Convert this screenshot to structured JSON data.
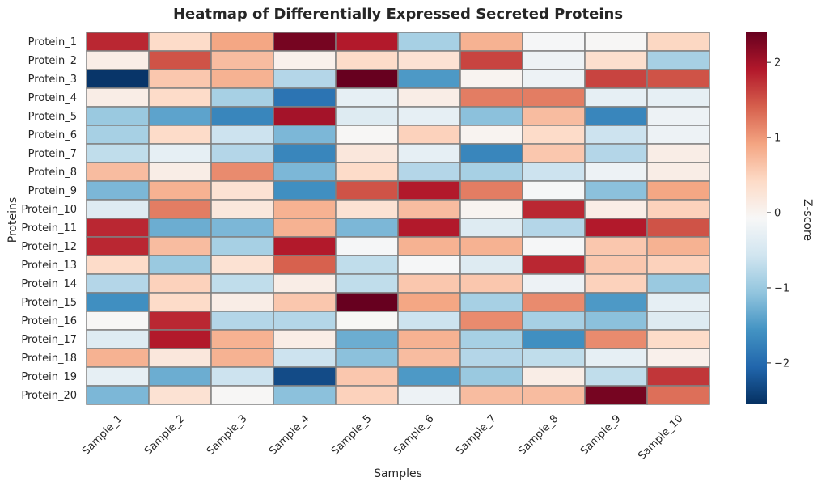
{
  "chart_data": {
    "type": "heatmap",
    "title": "Heatmap of Differentially Expressed Secreted Proteins",
    "xlabel": "Samples",
    "ylabel": "Proteins",
    "colorbar_label": "Z-score",
    "colormap": "RdBu_r",
    "vmin": -2.55,
    "vmax": 2.4,
    "colorbar_ticks": [
      -2,
      -1,
      0,
      1,
      2
    ],
    "colorbar_tick_labels": [
      "−2",
      "−1",
      "0",
      "1",
      "2"
    ],
    "columns": [
      "Sample_1",
      "Sample_2",
      "Sample_3",
      "Sample_4",
      "Sample_5",
      "Sample_6",
      "Sample_7",
      "Sample_8",
      "Sample_9",
      "Sample_10"
    ],
    "rows": [
      "Protein_1",
      "Protein_2",
      "Protein_3",
      "Protein_4",
      "Protein_5",
      "Protein_6",
      "Protein_7",
      "Protein_8",
      "Protein_9",
      "Protein_10",
      "Protein_11",
      "Protein_12",
      "Protein_13",
      "Protein_14",
      "Protein_15",
      "Protein_16",
      "Protein_17",
      "Protein_18",
      "Protein_19",
      "Protein_20"
    ],
    "values": [
      [
        1.8,
        0.4,
        0.9,
        2.3,
        1.9,
        -0.9,
        0.8,
        -0.1,
        -0.05,
        0.45
      ],
      [
        0.1,
        1.5,
        0.7,
        0.05,
        0.4,
        0.3,
        1.6,
        -0.2,
        0.35,
        -0.9
      ],
      [
        -2.5,
        0.6,
        0.8,
        -0.8,
        2.4,
        -1.5,
        0.0,
        -0.2,
        1.6,
        1.5
      ],
      [
        0.1,
        0.4,
        -0.9,
        -1.9,
        -0.3,
        0.1,
        1.2,
        1.2,
        -0.3,
        -0.3
      ],
      [
        -1.0,
        -1.4,
        -1.7,
        2.0,
        -0.4,
        -0.3,
        -1.1,
        0.7,
        -1.7,
        -0.2
      ],
      [
        -0.9,
        0.4,
        -0.6,
        -1.2,
        -0.05,
        0.5,
        0.0,
        0.4,
        -0.6,
        -0.2
      ],
      [
        -0.7,
        -0.3,
        -0.8,
        -1.7,
        0.2,
        -0.3,
        -1.7,
        0.6,
        -0.8,
        0.1
      ],
      [
        0.7,
        0.1,
        1.1,
        -1.2,
        0.4,
        -0.8,
        -0.9,
        -0.6,
        -0.2,
        0.1
      ],
      [
        -1.2,
        0.8,
        0.3,
        -1.6,
        1.5,
        1.9,
        1.2,
        -0.1,
        -1.1,
        0.9
      ],
      [
        -0.4,
        1.2,
        0.2,
        0.8,
        0.3,
        0.7,
        0.0,
        1.8,
        0.1,
        0.5
      ],
      [
        1.8,
        -1.3,
        -1.2,
        0.8,
        -1.2,
        1.9,
        -0.4,
        -0.8,
        1.9,
        1.5
      ],
      [
        1.8,
        0.7,
        -0.9,
        1.9,
        -0.1,
        0.8,
        0.8,
        -0.1,
        0.6,
        0.8
      ],
      [
        0.4,
        -1.0,
        0.3,
        1.4,
        -0.7,
        -0.1,
        -0.4,
        1.8,
        0.6,
        0.5
      ],
      [
        -0.8,
        0.5,
        -0.7,
        0.1,
        -0.7,
        0.6,
        0.6,
        -0.2,
        0.5,
        -1.0
      ],
      [
        -1.6,
        0.4,
        0.1,
        0.6,
        2.4,
        0.9,
        -0.9,
        1.1,
        -1.5,
        -0.3
      ],
      [
        -0.05,
        1.8,
        -0.8,
        -0.8,
        -0.05,
        -0.6,
        1.1,
        -0.9,
        -1.1,
        -0.4
      ],
      [
        -0.4,
        1.9,
        0.8,
        0.1,
        -1.3,
        0.8,
        -0.9,
        -1.6,
        1.1,
        0.4
      ],
      [
        0.8,
        0.2,
        0.8,
        -0.6,
        -1.1,
        0.7,
        -0.8,
        -0.7,
        -0.3,
        0.05
      ],
      [
        -0.3,
        -1.3,
        -0.6,
        -2.3,
        0.6,
        -1.5,
        -1.0,
        0.1,
        -0.7,
        1.7
      ],
      [
        -1.2,
        0.3,
        -0.05,
        -1.1,
        0.5,
        -0.2,
        0.7,
        0.7,
        2.3,
        1.3
      ]
    ]
  }
}
